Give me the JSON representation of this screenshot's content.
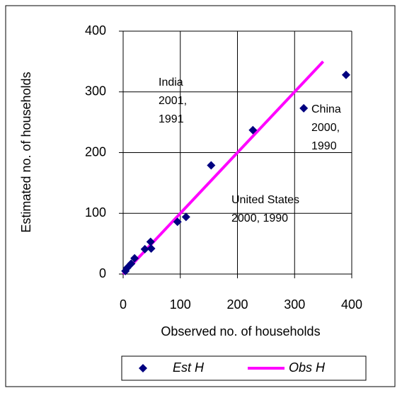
{
  "chart_data": {
    "type": "scatter",
    "x_label": "Observed no. of households",
    "y_label": "Estimated no. of households",
    "xlim": [
      0,
      400
    ],
    "ylim": [
      0,
      400
    ],
    "xticks": [
      0,
      100,
      200,
      300,
      400
    ],
    "yticks": [
      0,
      100,
      200,
      300,
      400
    ],
    "grid": true,
    "series": [
      {
        "name": "Est H",
        "color": "#000080",
        "marker": "diamond",
        "x": [
          390,
          316,
          227,
          154,
          110,
          95,
          49,
          48,
          38,
          20,
          14,
          7,
          4
        ],
        "values": [
          328,
          273,
          237,
          179,
          94,
          86,
          42,
          53,
          41,
          26,
          17,
          10,
          5
        ]
      },
      {
        "name": "Obs H",
        "color": "#ff00ff",
        "marker": "line",
        "x": [
          0,
          350
        ],
        "values": [
          0,
          350
        ]
      }
    ],
    "annotations": [
      {
        "lines": [
          "India",
          "2001,",
          "1991"
        ]
      },
      {
        "lines": [
          "China",
          "2000,",
          "1990"
        ]
      },
      {
        "lines": [
          "United States",
          "2000, 1990"
        ]
      }
    ],
    "legend": "bottom"
  }
}
